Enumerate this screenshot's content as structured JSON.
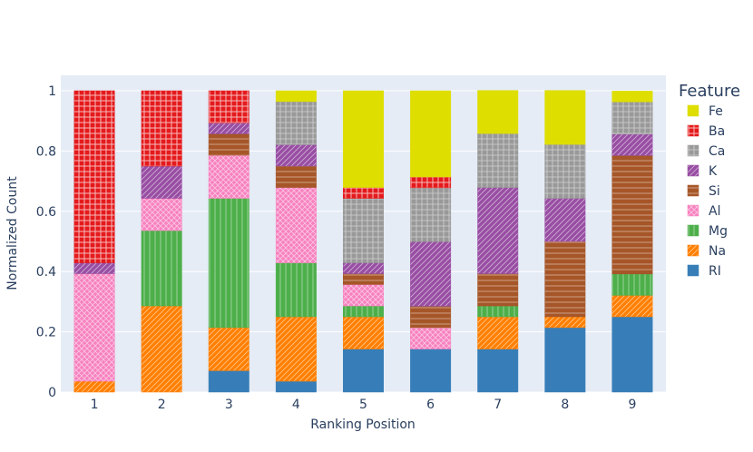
{
  "chart_data": {
    "type": "bar",
    "stacked": true,
    "normalized": true,
    "title": "",
    "xlabel": "Ranking Position",
    "ylabel": "Normalized Count",
    "ylim": [
      0,
      1
    ],
    "y_ticks": [
      "0",
      "0.2",
      "0.4",
      "0.6",
      "0.8",
      "1"
    ],
    "y_tick_values": [
      0,
      0.2,
      0.4,
      0.6,
      0.8,
      1
    ],
    "categories": [
      "1",
      "2",
      "3",
      "4",
      "5",
      "6",
      "7",
      "8",
      "9"
    ],
    "grid": true,
    "legend": {
      "title": "Feature",
      "placement": "right"
    },
    "series": [
      {
        "name": "RI",
        "color": "#377eb8",
        "pattern": "none",
        "values": [
          0,
          0,
          0.071,
          0.036,
          0.143,
          0.143,
          0.143,
          0.214,
          0.25
        ]
      },
      {
        "name": "Na",
        "color": "#ff7f00",
        "pattern": "diagonal",
        "values": [
          0.036,
          0.286,
          0.143,
          0.214,
          0.107,
          0,
          0.107,
          0.036,
          0.071
        ]
      },
      {
        "name": "Mg",
        "color": "#4daf4a",
        "pattern": "vertical",
        "values": [
          0,
          0.25,
          0.429,
          0.179,
          0.036,
          0,
          0.036,
          0,
          0.071
        ]
      },
      {
        "name": "Al",
        "color": "#f781bf",
        "pattern": "crosshatch",
        "values": [
          0.357,
          0.107,
          0.143,
          0.25,
          0.071,
          0.071,
          0,
          0,
          0
        ]
      },
      {
        "name": "Si",
        "color": "#a65628",
        "pattern": "horizontal",
        "values": [
          0,
          0,
          0.071,
          0.071,
          0.036,
          0.071,
          0.107,
          0.25,
          0.393
        ]
      },
      {
        "name": "K",
        "color": "#984ea3",
        "pattern": "diagonal",
        "values": [
          0.036,
          0.107,
          0.036,
          0.071,
          0.036,
          0.214,
          0.286,
          0.143,
          0.071
        ]
      },
      {
        "name": "Ca",
        "color": "#999999",
        "pattern": "grid",
        "values": [
          0,
          0,
          0,
          0.143,
          0.214,
          0.179,
          0.179,
          0.179,
          0.107
        ]
      },
      {
        "name": "Ba",
        "color": "#e41a1c",
        "pattern": "dots",
        "values": [
          0.571,
          0.25,
          0.107,
          0,
          0.036,
          0.036,
          0,
          0,
          0
        ]
      },
      {
        "name": "Fe",
        "color": "#dede00",
        "pattern": "none",
        "values": [
          0,
          0,
          0,
          0.036,
          0.321,
          0.286,
          0.143,
          0.179,
          0.036
        ]
      }
    ]
  }
}
